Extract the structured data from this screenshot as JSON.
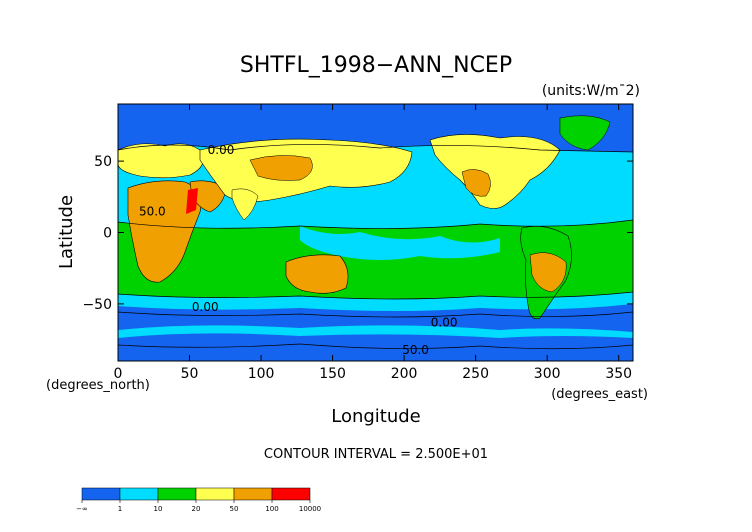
{
  "chart_data": {
    "type": "heatmap",
    "title": "SHTFL_1998−ANN_NCEP",
    "units_label": "(units:W/m¯2)",
    "xlabel": "Longitude",
    "ylabel": "Latitude",
    "x_unit_label": "(degrees_east)",
    "y_unit_label": "(degrees_north)",
    "xlim": [
      0,
      360
    ],
    "ylim": [
      -90,
      90
    ],
    "x_ticks": [
      0,
      50,
      100,
      150,
      200,
      250,
      300,
      350
    ],
    "y_ticks": [
      50,
      0,
      -50
    ],
    "x_tick_labels": [
      "0",
      "50",
      "100",
      "150",
      "200",
      "250",
      "300",
      "350"
    ],
    "y_tick_labels": [
      "50",
      "0",
      "−50"
    ],
    "contour_interval_text": "CONTOUR INTERVAL = 2.500E+01",
    "contour_labels": [
      {
        "text": "0.00",
        "lon": 72,
        "lat": 55
      },
      {
        "text": "50.0",
        "lon": 24,
        "lat": 12
      },
      {
        "text": "0.00",
        "lon": 61,
        "lat": -55
      },
      {
        "text": "0.00",
        "lon": 228,
        "lat": -66
      },
      {
        "text": "50.0",
        "lon": 208,
        "lat": -85
      }
    ],
    "legend": {
      "bins": [
        "−∞",
        "1",
        "10",
        "20",
        "50",
        "100",
        "10000"
      ],
      "colors": [
        "#1464f0",
        "#00dcff",
        "#00d200",
        "#ffff50",
        "#f0a000",
        "#ff0000"
      ]
    },
    "colors": {
      "ocean_deep": "#1464f0",
      "low": "#00dcff",
      "mid": "#00d200",
      "warm": "#ffff50",
      "hot": "#f0a000",
      "extreme": "#ff0000",
      "contour": "#000000"
    }
  }
}
